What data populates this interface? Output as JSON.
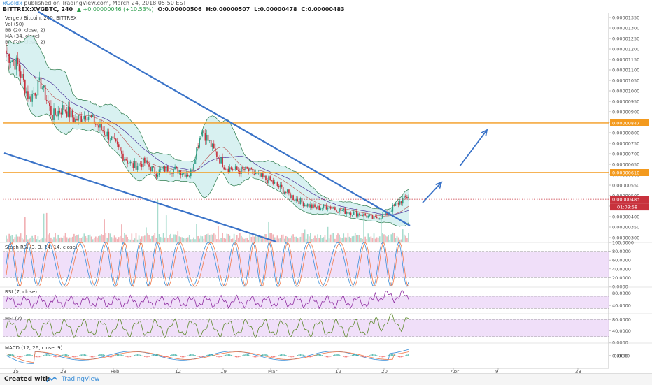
{
  "header": {
    "author": "xGoldx",
    "published": "published on TradingView.com, March 24, 2018 05:50 EST",
    "symbol": "BITTREX:XVGBTC, 240",
    "change": "▲ +0.00000046 (+10.53%)",
    "open": "O:0.00000506",
    "high": "H:0.00000507",
    "low": "L:0.00000478",
    "close": "C:0.00000483"
  },
  "footer": {
    "created_with": "Created with",
    "brand": "TradingView"
  },
  "colors": {
    "up": "#2e9c84",
    "down": "#c8323d",
    "orange": "#f39a1e",
    "blue": "#3a73c8",
    "band_fill": "#d4efef",
    "purple_band": "#e9d2f7",
    "rsi_line": "#8e2ca0",
    "stoch_k": "#3a8ed8",
    "stoch_d": "#f27a4b",
    "mfi_line": "#5c8a2a"
  },
  "chart_data": [
    {
      "type": "line",
      "title": "Verge / Bitcoin, 240, BITTREX",
      "indicators": [
        "Vol (50)",
        "BB (20, close, 2)",
        "MA (34, close)",
        "BB (20, close, 2)"
      ],
      "x_ticks": [
        "15",
        "23",
        "Feb",
        "12",
        "19",
        "Mar",
        "12",
        "20",
        "Apr",
        "9",
        "23"
      ],
      "y_ticks": [
        "0.00000300",
        "0.00000350",
        "0.00000400",
        "0.00000450",
        "0.00000500",
        "0.00000550",
        "0.00000600",
        "0.00000650",
        "0.00000700",
        "0.00000750",
        "0.00000800",
        "0.00000850",
        "0.00000900",
        "0.00000950",
        "0.00001000",
        "0.00001050",
        "0.00001100",
        "0.00001150",
        "0.00001200",
        "0.00001250",
        "0.00001300",
        "0.00001350"
      ],
      "ylim": [
        2.8e-06,
        1.37e-05
      ],
      "x": [
        0,
        2,
        4,
        6,
        8,
        10,
        12,
        14,
        16,
        18,
        20,
        22,
        24,
        26,
        28,
        30,
        32,
        34,
        36,
        38,
        40,
        42,
        44,
        46,
        48,
        50,
        52,
        54,
        56,
        58,
        60,
        62,
        64,
        66,
        68,
        70
      ],
      "series": [
        {
          "values": [
            1.18e-05,
            1.12e-05,
            9.6e-06,
            1.04e-05,
            8.8e-06,
            9.2e-06,
            8.6e-06,
            8.9e-06,
            8.3e-06,
            7.8e-06,
            7e-06,
            6.4e-06,
            6.6e-06,
            6.1e-06,
            6.3e-06,
            6.2e-06,
            6e-06,
            8.2e-06,
            7.2e-06,
            6.4e-06,
            6.2e-06,
            6.2e-06,
            5.9e-06,
            5.7e-06,
            5.3e-06,
            4.9e-06,
            4.6e-06,
            4.4e-06,
            4.5e-06,
            4.3e-06,
            4.2e-06,
            4.1e-06,
            3.9e-06,
            4.1e-06,
            4.6e-06,
            5e-06
          ]
        }
      ],
      "horizontal_levels": [
        {
          "label": "0.00000847",
          "value": 8.47e-06
        },
        {
          "label": "0.00000610",
          "value": 6.1e-06
        }
      ],
      "last_price_label": "0.00000483",
      "countdown_label": "01:09:58"
    },
    {
      "type": "line",
      "title": "Stoch RSI (3, 3, 14, 14, close)",
      "y_ticks": [
        "100.0000",
        "80.0000",
        "60.0000",
        "40.0000",
        "20.0000",
        "0.0000"
      ],
      "ylim": [
        0,
        100
      ],
      "band": [
        20,
        80
      ]
    },
    {
      "type": "line",
      "title": "RSI (7, close)",
      "y_ticks": [
        "80.0000",
        "40.0000"
      ],
      "ylim": [
        15,
        100
      ],
      "band": [
        30,
        70
      ]
    },
    {
      "type": "line",
      "title": "MFI (7)",
      "y_ticks": [
        "80.0000",
        "40.0000",
        "0.0000"
      ],
      "ylim": [
        0,
        100
      ],
      "band": [
        20,
        80
      ]
    },
    {
      "type": "line",
      "title": "MACD (12, 26, close, 9)",
      "y_ticks": [
        "0.0000",
        "-0.0000"
      ],
      "ylim": [
        -1,
        1
      ]
    }
  ]
}
